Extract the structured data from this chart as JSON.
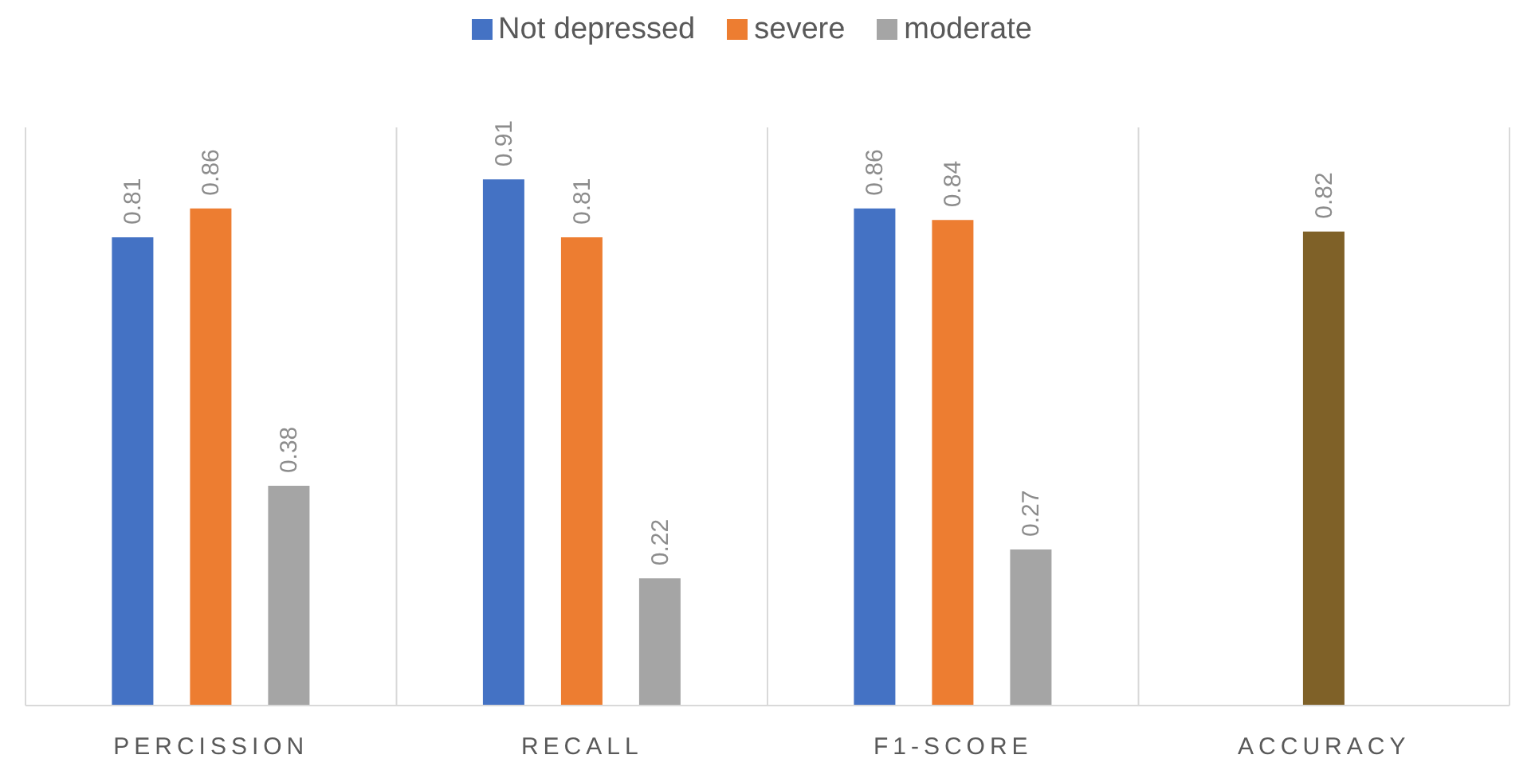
{
  "chart_data": {
    "type": "bar",
    "categories": [
      "PERCISSION",
      "RECALL",
      "F1-SCORE",
      "ACCURACY"
    ],
    "series": [
      {
        "name": "Not depressed",
        "color": "#4472c4",
        "values": [
          0.81,
          0.91,
          0.86,
          null
        ]
      },
      {
        "name": "severe",
        "color": "#ed7d31",
        "colors": [
          "#ed7d31",
          "#ed7d31",
          "#ed7d31",
          "#7f6128"
        ],
        "values": [
          0.86,
          0.81,
          0.84,
          0.82
        ]
      },
      {
        "name": "moderate",
        "color": "#a5a5a5",
        "values": [
          0.38,
          0.22,
          0.27,
          null
        ]
      }
    ],
    "ylim": [
      0,
      1
    ],
    "data_labels": true,
    "grid": "x",
    "legend": "top",
    "tick_labels": "x"
  }
}
